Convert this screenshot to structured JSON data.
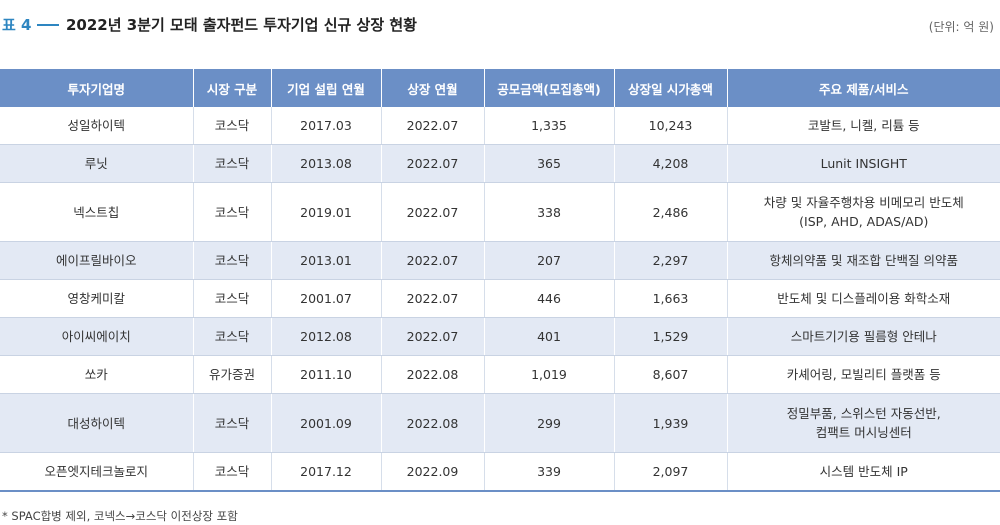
{
  "title": {
    "label": "표 4",
    "text": "2022년 3분기 모태 출자펀드 투자기업 신규 상장 현황",
    "unit": "(단위: 억 원)"
  },
  "table": {
    "headers": [
      "투자기업명",
      "시장 구분",
      "기업 설립 연월",
      "상장 연월",
      "공모금액(모집총액)",
      "상장일 시가총액",
      "주요 제품/서비스"
    ],
    "rows": [
      [
        "성일하이텍",
        "코스닥",
        "2017.03",
        "2022.07",
        "1,335",
        "10,243",
        "코발트, 니켈, 리튬 등"
      ],
      [
        "루닛",
        "코스닥",
        "2013.08",
        "2022.07",
        "365",
        "4,208",
        "Lunit INSIGHT"
      ],
      [
        "넥스트칩",
        "코스닥",
        "2019.01",
        "2022.07",
        "338",
        "2,486",
        "차량 및 자율주행차용 비메모리 반도체\n(ISP, AHD, ADAS/AD)"
      ],
      [
        "에이프릴바이오",
        "코스닥",
        "2013.01",
        "2022.07",
        "207",
        "2,297",
        "항체의약품 및 재조합 단백질 의약품"
      ],
      [
        "영창케미칼",
        "코스닥",
        "2001.07",
        "2022.07",
        "446",
        "1,663",
        "반도체 및 디스플레이용 화학소재"
      ],
      [
        "아이씨에이치",
        "코스닥",
        "2012.08",
        "2022.07",
        "401",
        "1,529",
        "스마트기기용 필름형 안테나"
      ],
      [
        "쏘카",
        "유가증권",
        "2011.10",
        "2022.08",
        "1,019",
        "8,607",
        "카셰어링, 모빌리티 플랫폼 등"
      ],
      [
        "대성하이텍",
        "코스닥",
        "2001.09",
        "2022.08",
        "299",
        "1,939",
        "정밀부품, 스위스턴 자동선반,\n컴팩트 머시닝센터"
      ],
      [
        "오픈엣지테크놀로지",
        "코스닥",
        "2017.12",
        "2022.09",
        "339",
        "2,097",
        "시스템 반도체 IP"
      ]
    ]
  },
  "footnote": "* SPAC합병 제외, 코넥스→코스닥 이전상장 포함",
  "colors": {
    "header_bg": "#6b8fc6",
    "stripe_bg": "#e3e9f4",
    "accent": "#2e86c1"
  }
}
